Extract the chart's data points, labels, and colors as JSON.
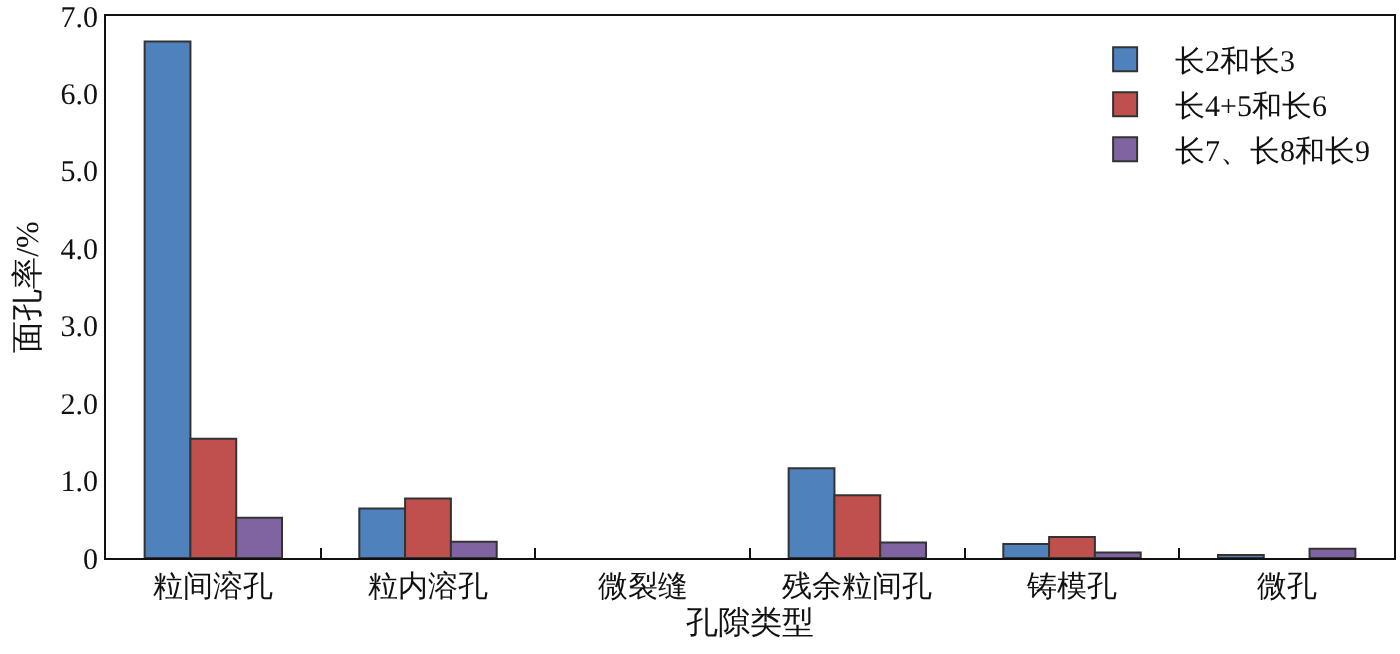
{
  "chart_data": {
    "type": "bar",
    "xlabel": "孔隙类型",
    "ylabel": "面孔率/%",
    "categories": [
      "粒间溶孔",
      "粒内溶孔",
      "微裂缝",
      "残余粒间孔",
      "铸模孔",
      "微孔"
    ],
    "series": [
      {
        "name": "长2和长3",
        "color": "#4f81bd",
        "values": [
          6.67,
          0.64,
          0,
          1.16,
          0.18,
          0.04
        ]
      },
      {
        "name": "长4+5和长6",
        "color": "#c0504d",
        "values": [
          1.54,
          0.77,
          0,
          0.81,
          0.27,
          0
        ]
      },
      {
        "name": "长7、长8和长9",
        "color": "#8064a2",
        "values": [
          0.52,
          0.21,
          0,
          0.2,
          0.07,
          0.12
        ]
      }
    ],
    "ylim": [
      0,
      7
    ],
    "yticks": [
      {
        "value": 0,
        "label": "0"
      },
      {
        "value": 1,
        "label": "1.0"
      },
      {
        "value": 2,
        "label": "2.0"
      },
      {
        "value": 3,
        "label": "3.0"
      },
      {
        "value": 4,
        "label": "4.0"
      },
      {
        "value": 5,
        "label": "5.0"
      },
      {
        "value": 6,
        "label": "6.0"
      },
      {
        "value": 7,
        "label": "7.0"
      }
    ],
    "grid": false,
    "legend": "top right"
  }
}
